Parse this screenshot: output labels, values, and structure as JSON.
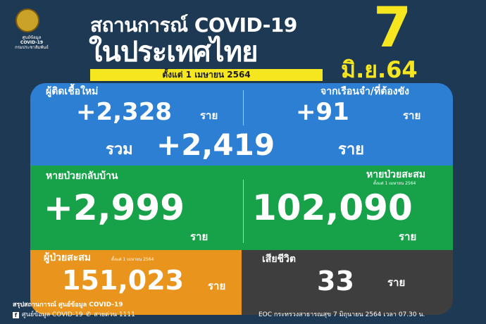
{
  "header": {
    "org": [
      "ศูนย์ข้อมูล",
      "COVID-19",
      "กรมประชาสัมพันธ์"
    ],
    "title1": "สถานการณ์ COVID-19",
    "title2": "ในประเทศไทย",
    "subtitle": "ตั้งแต่ 1 เมษายน 2564",
    "day": "7",
    "month_year": "มิ.ย.64"
  },
  "new_cases": {
    "label": "ผู้ติดเชื้อใหม่",
    "value": "+2,328",
    "unit": "ราย"
  },
  "prison": {
    "label": "จากเรือนจำ/ที่ต้องขัง",
    "value": "+91",
    "unit": "ราย"
  },
  "total": {
    "label": "รวม",
    "value": "+2,419",
    "unit": "ราย"
  },
  "recovered": {
    "label": "หายป่วยกลับบ้าน",
    "value": "+2,999",
    "unit": "ราย"
  },
  "recovered_cum": {
    "label": "หายป่วยสะสม",
    "note": "ตั้งแต่ 1 เมษายน 2564",
    "value": "102,090",
    "unit": "ราย"
  },
  "cum_cases": {
    "label": "ผู้ป่วยสะสม",
    "note": "ตั้งแต่ 1 เมษายน 2564",
    "value": "151,023",
    "unit": "ราย"
  },
  "deaths": {
    "label": "เสียชีวิต",
    "value": "33",
    "unit": "ราย"
  },
  "footer": {
    "line1": "สรุปสถานการณ์ ศูนย์ข้อมูล COVID-19",
    "facebook": "ศูนย์ข้อมูล COVID-19",
    "hotline": "สายด่วน 1111",
    "source": "EOC กระทรวงสาธารณสุข 7 มิถุนายน 2564 เวลา 07.30 น."
  },
  "colors": {
    "background": "#1d3954",
    "blue": "#2d7fd3",
    "green": "#17a24a",
    "orange": "#e9951d",
    "gray": "#3e3e3e",
    "yellow": "#f5e620"
  }
}
